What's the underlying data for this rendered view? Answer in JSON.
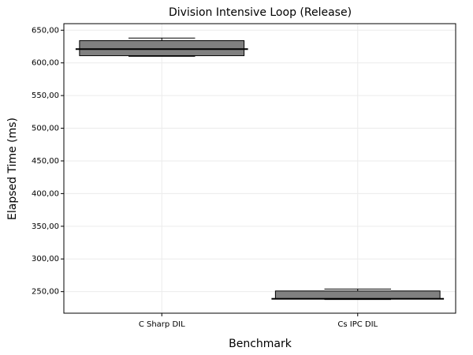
{
  "chart_data": {
    "type": "box",
    "title": "Division Intensive Loop (Release)",
    "x_label": "Benchmark",
    "y_label": "Elapsed Time (ms)",
    "categories": [
      "C Sharp DIL",
      "Cs IPC DIL"
    ],
    "min": [
      610,
      238
    ],
    "q1": [
      611,
      239
    ],
    "median": [
      621,
      239
    ],
    "q3": [
      634,
      251
    ],
    "max": [
      638,
      254
    ],
    "color": "#808080",
    "ylim": [
      217,
      660
    ],
    "yticks": [
      {
        "value": 250,
        "label": "250,00"
      },
      {
        "value": 300,
        "label": "300,00"
      },
      {
        "value": 350,
        "label": "350,00"
      },
      {
        "value": 400,
        "label": "400,00"
      },
      {
        "value": 450,
        "label": "450,00"
      },
      {
        "value": 500,
        "label": "500,00"
      },
      {
        "value": 550,
        "label": "550,00"
      },
      {
        "value": 600,
        "label": "600,00"
      },
      {
        "value": 650,
        "label": "650,00"
      }
    ],
    "grid": true
  }
}
